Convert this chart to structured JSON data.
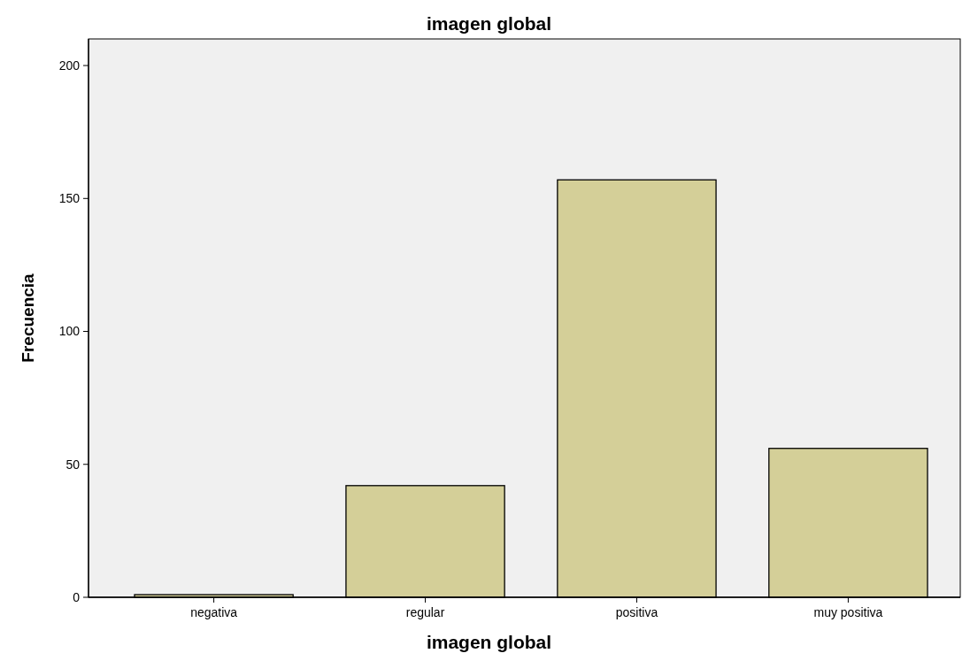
{
  "chart_data": {
    "type": "bar",
    "title": "imagen global",
    "xlabel": "imagen global",
    "ylabel": "Frecuencia",
    "categories": [
      "negativa",
      "regular",
      "positiva",
      "muy positiva"
    ],
    "values": [
      1,
      42,
      157,
      56
    ],
    "color": "#d4cf98",
    "ylim": [
      0,
      210
    ],
    "yticks": [
      0,
      50,
      100,
      150,
      200
    ],
    "grid": false
  }
}
